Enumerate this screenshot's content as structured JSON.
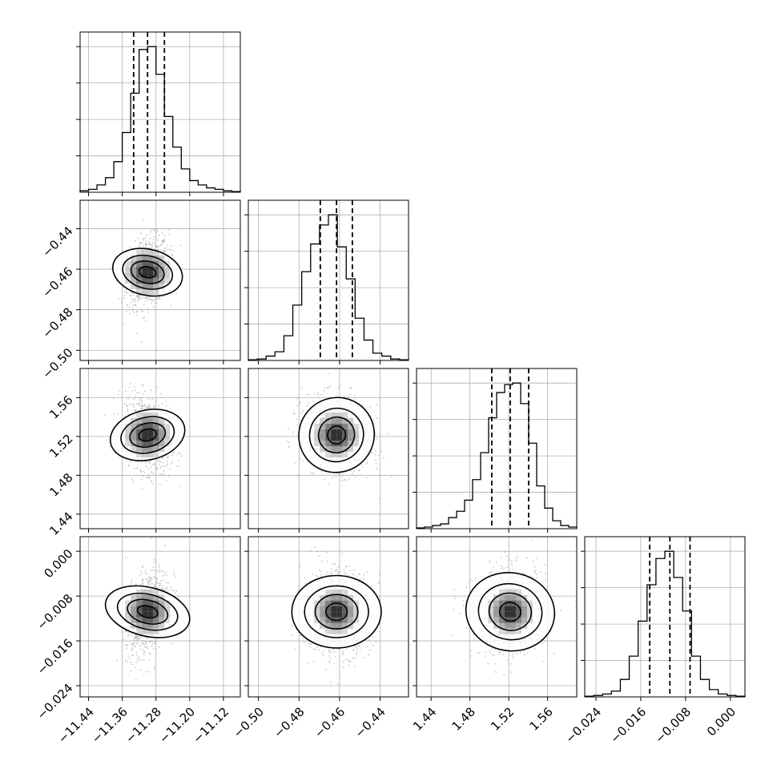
{
  "chart_data": {
    "type": "corner",
    "parameters": [
      {
        "range": [
          -11.46,
          -11.08
        ],
        "ticks": [
          "−11.44",
          "−11.36",
          "−11.28",
          "−11.20",
          "−11.12"
        ],
        "tick_values": [
          -11.44,
          -11.36,
          -11.28,
          -11.2,
          -11.12
        ],
        "quantiles": [
          -11.333,
          -11.3,
          -11.26
        ],
        "histogram": [
          1,
          2,
          5,
          10,
          21,
          41,
          68,
          98,
          100,
          81,
          52,
          31,
          16,
          8,
          5,
          3,
          2,
          1,
          0.5
        ]
      },
      {
        "range": [
          -0.505,
          -0.426
        ],
        "ticks": [
          "−0.50",
          "−0.48",
          "−0.46",
          "−0.44"
        ],
        "tick_values": [
          -0.5,
          -0.48,
          -0.46,
          -0.44
        ],
        "quantiles": [
          -0.4695,
          -0.4615,
          -0.4537
        ],
        "histogram": [
          0.5,
          1,
          3,
          6,
          17,
          38,
          61,
          80,
          93,
          100,
          78,
          56,
          29,
          14,
          5,
          3,
          1,
          0.5
        ]
      },
      {
        "range": [
          1.425,
          1.59
        ],
        "ticks": [
          "1.44",
          "1.48",
          "1.52",
          "1.56"
        ],
        "tick_values": [
          1.44,
          1.48,
          1.52,
          1.56
        ],
        "quantiles": [
          1.5025,
          1.5215,
          1.5405
        ],
        "histogram": [
          0.5,
          1,
          2,
          3,
          7,
          11,
          18,
          31,
          48,
          70,
          86,
          91,
          92,
          79,
          54,
          27,
          13,
          5,
          2,
          1
        ]
      },
      {
        "range": [
          -0.026,
          0.0026
        ],
        "ticks": [
          "−0.024",
          "−0.016",
          "−0.008",
          "0.000"
        ],
        "tick_values": [
          -0.024,
          -0.016,
          -0.008,
          0
        ],
        "quantiles": [
          -0.0144,
          -0.0108,
          -0.0072
        ],
        "histogram": [
          0.5,
          1,
          2,
          4,
          12,
          28,
          52,
          77,
          95,
          100,
          82,
          59,
          28,
          12,
          5,
          2,
          1,
          0.5
        ]
      }
    ],
    "pairs": [
      {
        "x": 0,
        "y": 1,
        "center": [
          -11.3,
          -0.4615
        ],
        "sigma": [
          0.025,
          0.0085
        ],
        "rho": 0.25
      },
      {
        "x": 0,
        "y": 2,
        "center": [
          -11.3,
          1.5215
        ],
        "sigma": [
          0.027,
          0.019
        ],
        "rho": -0.25
      },
      {
        "x": 0,
        "y": 3,
        "center": [
          -11.3,
          -0.0108
        ],
        "sigma": [
          0.026,
          0.0038
        ],
        "rho": 0.38
      },
      {
        "x": 1,
        "y": 2,
        "center": [
          -0.4615,
          1.5215
        ],
        "sigma": [
          0.0085,
          0.019
        ],
        "rho": -0.18
      },
      {
        "x": 1,
        "y": 3,
        "center": [
          -0.4615,
          -0.0108
        ],
        "sigma": [
          0.0085,
          0.0038
        ],
        "rho": 0.0
      },
      {
        "x": 2,
        "y": 3,
        "center": [
          1.5215,
          -0.0108
        ],
        "sigma": [
          0.019,
          0.0038
        ],
        "rho": 0.05
      }
    ],
    "grid": true,
    "contour_levels": [
      0.12,
      0.35,
      0.62,
      0.9
    ],
    "colors": {
      "line": "#000000",
      "grid": "#b0b0b0",
      "density": "#000000"
    }
  }
}
